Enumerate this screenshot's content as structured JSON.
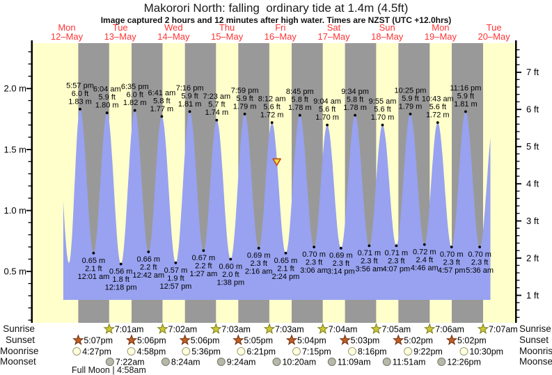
{
  "title": "Makorori North: falling  ordinary tide at 1.4m (4.5ft)",
  "subtitle": "Image captured 2 hours and 12 minutes after high water. Times are NZST (UTC +12.0hrs)",
  "days": [
    {
      "name": "Mon",
      "date": "12–May"
    },
    {
      "name": "Tue",
      "date": "13–May"
    },
    {
      "name": "Wed",
      "date": "14–May"
    },
    {
      "name": "Thu",
      "date": "15–May"
    },
    {
      "name": "Fri",
      "date": "16–May"
    },
    {
      "name": "Sat",
      "date": "17–May"
    },
    {
      "name": "Sun",
      "date": "18–May"
    },
    {
      "name": "Mon",
      "date": "19–May"
    },
    {
      "name": "Tue",
      "date": "20–May"
    }
  ],
  "axes": {
    "left_ticks": [
      "0.5 m",
      "1.0 m",
      "1.5 m",
      "2.0 m"
    ],
    "right_ticks": [
      "1 ft",
      "2 ft",
      "3 ft",
      "4 ft",
      "5 ft",
      "6 ft",
      "7 ft"
    ]
  },
  "chart_data": {
    "type": "area",
    "title": "Makorori North: falling  ordinary tide at 1.4m (4.5ft)",
    "x_axis": "Time (NZST), Mon 12–May to Tue 20–May",
    "y_axis_left": {
      "unit": "m",
      "ticks": [
        0.5,
        1.0,
        1.5,
        2.0
      ]
    },
    "y_axis_right": {
      "unit": "ft",
      "ticks": [
        1,
        2,
        3,
        4,
        5,
        6,
        7
      ]
    },
    "legend": "yellow = day, grey = night (sunset to sunrise), blue area = tide height",
    "high_tides": [
      {
        "day": 0,
        "time": "5:57 pm",
        "height_ft": "6.0 ft",
        "height_m": "1.83 m"
      },
      {
        "day": 1,
        "time": "6:04 am",
        "height_ft": "5.9 ft",
        "height_m": "1.80 m"
      },
      {
        "day": 1,
        "time": "6:35 pm",
        "height_ft": "6.0 ft",
        "height_m": "1.82 m"
      },
      {
        "day": 2,
        "time": "6:41 am",
        "height_ft": "5.8 ft",
        "height_m": "1.77 m"
      },
      {
        "day": 2,
        "time": "7:16 pm",
        "height_ft": "5.9 ft",
        "height_m": "1.81 m"
      },
      {
        "day": 3,
        "time": "7:23 am",
        "height_ft": "5.7 ft",
        "height_m": "1.74 m"
      },
      {
        "day": 3,
        "time": "7:59 pm",
        "height_ft": "5.9 ft",
        "height_m": "1.79 m"
      },
      {
        "day": 4,
        "time": "8:12 am",
        "height_ft": "5.6 ft",
        "height_m": "1.72 m"
      },
      {
        "day": 4,
        "time": "8:45 pm",
        "height_ft": "5.8 ft",
        "height_m": "1.78 m"
      },
      {
        "day": 5,
        "time": "9:04 am",
        "height_ft": "5.6 ft",
        "height_m": "1.70 m"
      },
      {
        "day": 5,
        "time": "9:34 pm",
        "height_ft": "5.8 ft",
        "height_m": "1.78 m"
      },
      {
        "day": 6,
        "time": "9:55 am",
        "height_ft": "5.6 ft",
        "height_m": "1.70 m"
      },
      {
        "day": 6,
        "time": "10:25 pm",
        "height_ft": "5.9 ft",
        "height_m": "1.79 m"
      },
      {
        "day": 7,
        "time": "10:43 am",
        "height_ft": "5.6 ft",
        "height_m": "1.72 m"
      },
      {
        "day": 7,
        "time": "11:16 pm",
        "height_ft": "5.9 ft",
        "height_m": "1.81 m"
      }
    ],
    "low_tides": [
      {
        "day": 1,
        "time": "12:01 am",
        "height_ft": "2.1 ft",
        "height_m": "0.65 m"
      },
      {
        "day": 1,
        "time": "12:18 pm",
        "height_ft": "1.8 ft",
        "height_m": "0.56 m"
      },
      {
        "day": 2,
        "time": "12:42 am",
        "height_ft": "2.2 ft",
        "height_m": "0.66 m"
      },
      {
        "day": 2,
        "time": "12:57 pm",
        "height_ft": "1.9 ft",
        "height_m": "0.57 m"
      },
      {
        "day": 3,
        "time": "1:27 am",
        "height_ft": "2.2 ft",
        "height_m": "0.67 m"
      },
      {
        "day": 3,
        "time": "1:38 pm",
        "height_ft": "2.0 ft",
        "height_m": "0.60 m"
      },
      {
        "day": 4,
        "time": "2:16 am",
        "height_ft": "2.3 ft",
        "height_m": "0.69 m"
      },
      {
        "day": 4,
        "time": "2:24 pm",
        "height_ft": "2.1 ft",
        "height_m": "0.65 m"
      },
      {
        "day": 5,
        "time": "3:06 am",
        "height_ft": "2.3 ft",
        "height_m": "0.70 m"
      },
      {
        "day": 5,
        "time": "3:14 pm",
        "height_ft": "2.3 ft",
        "height_m": "0.69 m"
      },
      {
        "day": 6,
        "time": "3:56 am",
        "height_ft": "2.3 ft",
        "height_m": "0.71 m"
      },
      {
        "day": 6,
        "time": "4:07 pm",
        "height_ft": "2.3 ft",
        "height_m": "0.71 m"
      },
      {
        "day": 7,
        "time": "4:46 am",
        "height_ft": "2.4 ft",
        "height_m": "0.72 m"
      },
      {
        "day": 7,
        "time": "4:57 pm",
        "height_ft": "2.3 ft",
        "height_m": "0.70 m"
      },
      {
        "day": 8,
        "time": "5:36 am",
        "height_ft": "2.3 ft",
        "height_m": "0.70 m"
      }
    ],
    "edge_extremes_estimated": [
      {
        "t_days": 0.3,
        "height_m": 1.8
      },
      {
        "t_days": 0.54,
        "height_m": 0.57
      },
      {
        "t_days": 8.5,
        "height_m": 1.75
      },
      {
        "t_days": 8.76,
        "height_m": 0.7
      }
    ],
    "current_marker": {
      "day": 4,
      "time": "10:24 am",
      "height_m": 1.4,
      "note": "falling tide at 1.4m (4.5ft)"
    },
    "curve_window_days_around_marker": 4
  },
  "astro": {
    "row_labels": [
      "Sunrise",
      "Sunset",
      "Moonrise",
      "Moonset"
    ],
    "sunrise": [
      {
        "day": 1,
        "time": "7:01am"
      },
      {
        "day": 2,
        "time": "7:02am"
      },
      {
        "day": 3,
        "time": "7:03am"
      },
      {
        "day": 4,
        "time": "7:03am"
      },
      {
        "day": 5,
        "time": "7:04am"
      },
      {
        "day": 6,
        "time": "7:05am"
      },
      {
        "day": 7,
        "time": "7:06am"
      },
      {
        "day": 8,
        "time": "7:07am"
      }
    ],
    "sunset": [
      {
        "day": 0,
        "time": "5:07pm"
      },
      {
        "day": 1,
        "time": "5:06pm"
      },
      {
        "day": 2,
        "time": "5:06pm"
      },
      {
        "day": 3,
        "time": "5:05pm"
      },
      {
        "day": 4,
        "time": "5:04pm"
      },
      {
        "day": 5,
        "time": "5:03pm"
      },
      {
        "day": 6,
        "time": "5:02pm"
      },
      {
        "day": 7,
        "time": "5:02pm"
      }
    ],
    "moonrise": [
      {
        "day": 0,
        "time": "4:27pm"
      },
      {
        "day": 1,
        "time": "4:58pm"
      },
      {
        "day": 2,
        "time": "5:36pm"
      },
      {
        "day": 3,
        "time": "6:21pm"
      },
      {
        "day": 4,
        "time": "7:15pm"
      },
      {
        "day": 5,
        "time": "8:16pm"
      },
      {
        "day": 6,
        "time": "9:22pm"
      },
      {
        "day": 7,
        "time": "10:30pm"
      }
    ],
    "moonset": [
      {
        "day": 1,
        "time": "7:22am"
      },
      {
        "day": 2,
        "time": "8:24am"
      },
      {
        "day": 3,
        "time": "9:24am"
      },
      {
        "day": 4,
        "time": "10:20am"
      },
      {
        "day": 5,
        "time": "11:09am"
      },
      {
        "day": 6,
        "time": "11:51am"
      },
      {
        "day": 7,
        "time": "12:26pm"
      }
    ],
    "moon_phase": {
      "label": "Full Moon | 4:58am",
      "day": 1,
      "time": "4:58am"
    }
  },
  "colors": {
    "plot_day": "#ffffcc",
    "plot_night": "#999999",
    "tide_fill": "#98a2f0",
    "date_label": "#ff3333",
    "marker_fill": "#f2da40",
    "marker_border": "#bf4a1a",
    "sunrise_star": "#ccc83a",
    "sunset_star": "#c05f24",
    "moonrise_icon": "#ffffdd",
    "moonset_icon": "#b8b8aa",
    "axis": "#000000"
  }
}
